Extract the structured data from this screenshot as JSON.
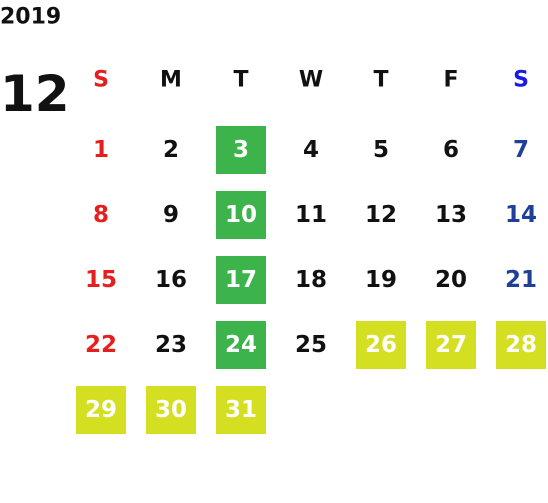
{
  "year": "2019",
  "month": "12",
  "weekdays": [
    {
      "label": "S",
      "color": "#e61e1e"
    },
    {
      "label": "M",
      "color": "#111111"
    },
    {
      "label": "T",
      "color": "#111111"
    },
    {
      "label": "W",
      "color": "#111111"
    },
    {
      "label": "T",
      "color": "#111111"
    },
    {
      "label": "F",
      "color": "#111111"
    },
    {
      "label": "S",
      "color": "#1a1ae6"
    }
  ],
  "day_colors": [
    "#e61e1e",
    "#111111",
    "#111111",
    "#111111",
    "#111111",
    "#111111",
    "#1f3f99"
  ],
  "highlight_text_color": "#ffffff",
  "weeks": [
    [
      {
        "day": 1
      },
      {
        "day": 2
      },
      {
        "day": 3,
        "fill": "#3cb44b"
      },
      {
        "day": 4
      },
      {
        "day": 5
      },
      {
        "day": 6
      },
      {
        "day": 7
      }
    ],
    [
      {
        "day": 8
      },
      {
        "day": 9
      },
      {
        "day": 10,
        "fill": "#3cb44b"
      },
      {
        "day": 11
      },
      {
        "day": 12
      },
      {
        "day": 13
      },
      {
        "day": 14
      }
    ],
    [
      {
        "day": 15
      },
      {
        "day": 16
      },
      {
        "day": 17,
        "fill": "#3cb44b"
      },
      {
        "day": 18
      },
      {
        "day": 19
      },
      {
        "day": 20
      },
      {
        "day": 21
      }
    ],
    [
      {
        "day": 22
      },
      {
        "day": 23
      },
      {
        "day": 24,
        "fill": "#3cb44b"
      },
      {
        "day": 25
      },
      {
        "day": 26,
        "fill": "#d4df21"
      },
      {
        "day": 27,
        "fill": "#d4df21"
      },
      {
        "day": 28,
        "fill": "#d4df21"
      }
    ],
    [
      {
        "day": 29,
        "fill": "#d4df21"
      },
      {
        "day": 30,
        "fill": "#d4df21"
      },
      {
        "day": 31,
        "fill": "#d4df21"
      }
    ]
  ]
}
